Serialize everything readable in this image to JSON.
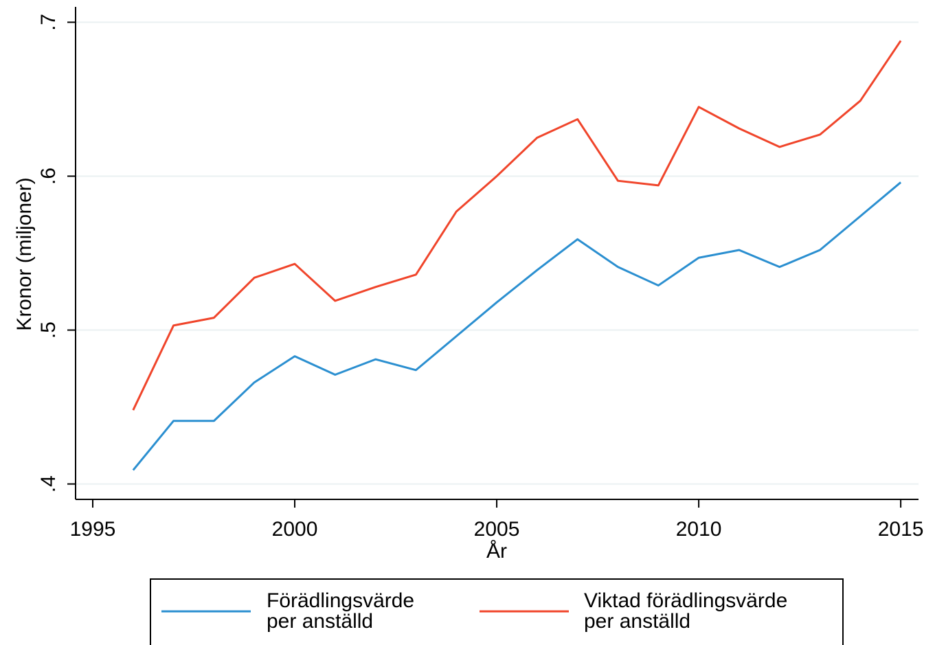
{
  "chart_data": {
    "type": "line",
    "x": [
      1996,
      1997,
      1998,
      1999,
      2000,
      2001,
      2002,
      2003,
      2004,
      2005,
      2006,
      2007,
      2008,
      2009,
      2010,
      2011,
      2012,
      2013,
      2014,
      2015
    ],
    "series": [
      {
        "name": "Förädlingsvärde\nper anställd",
        "color": "#2b8fd0",
        "values": [
          0.409,
          0.441,
          0.441,
          0.466,
          0.483,
          0.471,
          0.481,
          0.474,
          0.496,
          0.518,
          0.539,
          0.559,
          0.541,
          0.529,
          0.547,
          0.552,
          0.541,
          0.552,
          0.574,
          0.596
        ]
      },
      {
        "name": "Viktad förädlingsvärde\nper anställd",
        "color": "#f0452b",
        "values": [
          0.448,
          0.503,
          0.508,
          0.534,
          0.543,
          0.519,
          0.528,
          0.536,
          0.577,
          0.6,
          0.625,
          0.637,
          0.597,
          0.594,
          0.645,
          0.631,
          0.619,
          0.627,
          0.649,
          0.688
        ]
      }
    ],
    "x_label": "År",
    "y_label": "Kronor (miljoner)",
    "xlim": [
      1994.575,
      2015.44
    ],
    "xticks": [
      1995,
      2000,
      2005,
      2010,
      2015
    ],
    "ylim": [
      0.39,
      0.71
    ],
    "yticks": [
      {
        "value": 0.4,
        "label": ".4"
      },
      {
        "value": 0.5,
        "label": ".5"
      },
      {
        "value": 0.6,
        "label": ".6"
      },
      {
        "value": 0.7,
        "label": ".7"
      }
    ],
    "grid": true,
    "legend": "bottom"
  }
}
